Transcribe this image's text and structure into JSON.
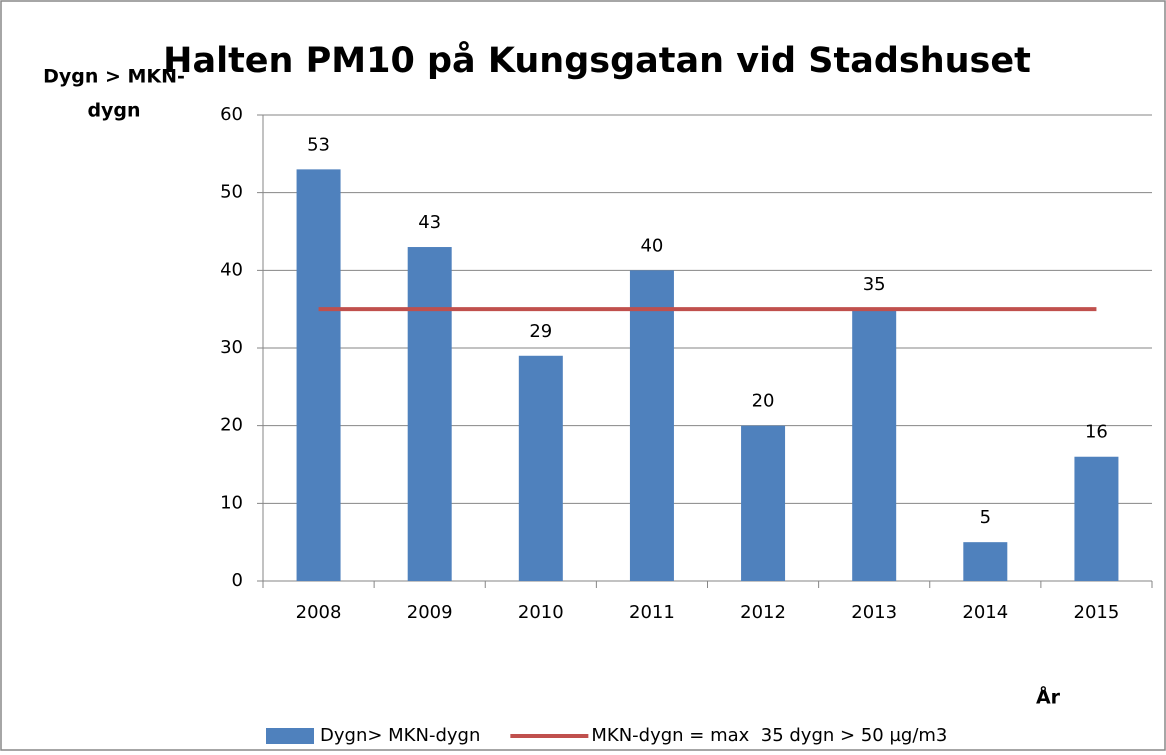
{
  "chart_data": {
    "type": "bar",
    "title": "Halten PM10 på Kungsgatan vid Stadshuset",
    "ylabel": [
      "Dygn > MKN-",
      "dygn"
    ],
    "xlabel": "År",
    "categories": [
      "2008",
      "2009",
      "2010",
      "2011",
      "2012",
      "2013",
      "2014",
      "2015"
    ],
    "series": [
      {
        "name": "Dygn> MKN-dygn",
        "type": "bar",
        "color": "#4f81bd",
        "values": [
          53,
          43,
          29,
          40,
          20,
          35,
          5,
          16
        ]
      },
      {
        "name": "MKN-dygn = max  35 dygn > 50 µg/m3",
        "type": "line",
        "color": "#c0504d",
        "values": [
          35,
          35,
          35,
          35,
          35,
          35,
          35,
          35
        ]
      }
    ],
    "ylim": [
      0,
      60
    ],
    "yticks": [
      0,
      10,
      20,
      30,
      40,
      50,
      60
    ],
    "grid": true,
    "legend": "bottom"
  }
}
